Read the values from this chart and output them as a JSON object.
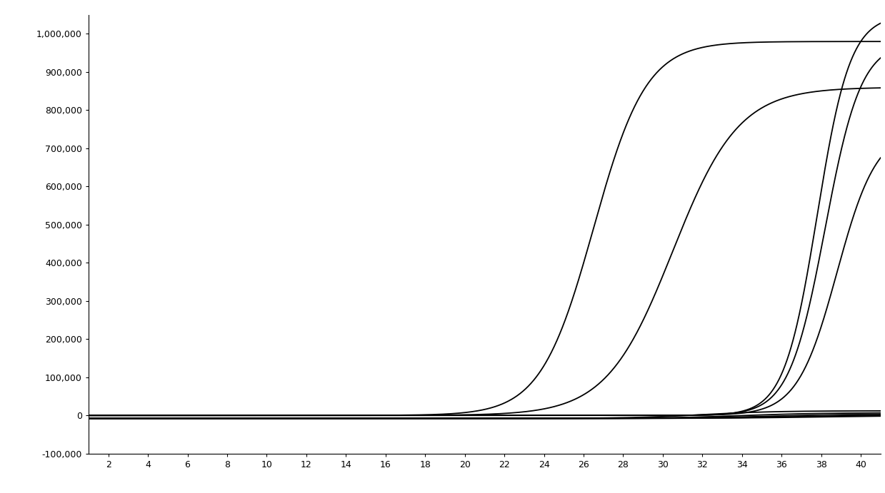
{
  "title": "",
  "xlabel": "",
  "ylabel": "",
  "xlim": [
    1,
    41
  ],
  "ylim": [
    -100000,
    1050000
  ],
  "xticks": [
    2,
    4,
    6,
    8,
    10,
    12,
    14,
    16,
    18,
    20,
    22,
    24,
    26,
    28,
    30,
    32,
    34,
    36,
    38,
    40
  ],
  "yticks": [
    -100000,
    0,
    100000,
    200000,
    300000,
    400000,
    500000,
    600000,
    700000,
    800000,
    900000,
    1000000
  ],
  "ytick_labels": [
    "-100,000",
    "0",
    "100,000",
    "200,000",
    "300,000",
    "400,000",
    "500,000",
    "600,000",
    "700,000",
    "800,000",
    "900,000",
    "1,000,000"
  ],
  "background_color": "#ffffff",
  "line_color": "#000000",
  "curves": [
    {
      "L": 980000,
      "k": 0.75,
      "x0": 26.5,
      "baseline": 0
    },
    {
      "L": 860000,
      "k": 0.6,
      "x0": 30.5,
      "baseline": 0
    },
    {
      "L": 1050000,
      "k": 1.2,
      "x0": 37.8,
      "baseline": 0
    },
    {
      "L": 980000,
      "k": 1.1,
      "x0": 38.2,
      "baseline": 0
    },
    {
      "L": 750000,
      "k": 1.0,
      "x0": 38.8,
      "baseline": 0
    },
    {
      "L": 20000,
      "k": 0.55,
      "x0": 32.0,
      "baseline": -8000
    },
    {
      "L": 15000,
      "k": 0.5,
      "x0": 34.0,
      "baseline": -8000
    },
    {
      "L": 12000,
      "k": 0.45,
      "x0": 35.5,
      "baseline": -8000
    },
    {
      "L": 10000,
      "k": 0.4,
      "x0": 37.0,
      "baseline": -8000
    },
    {
      "L": 8000,
      "k": 0.38,
      "x0": 38.0,
      "baseline": -8000
    }
  ]
}
